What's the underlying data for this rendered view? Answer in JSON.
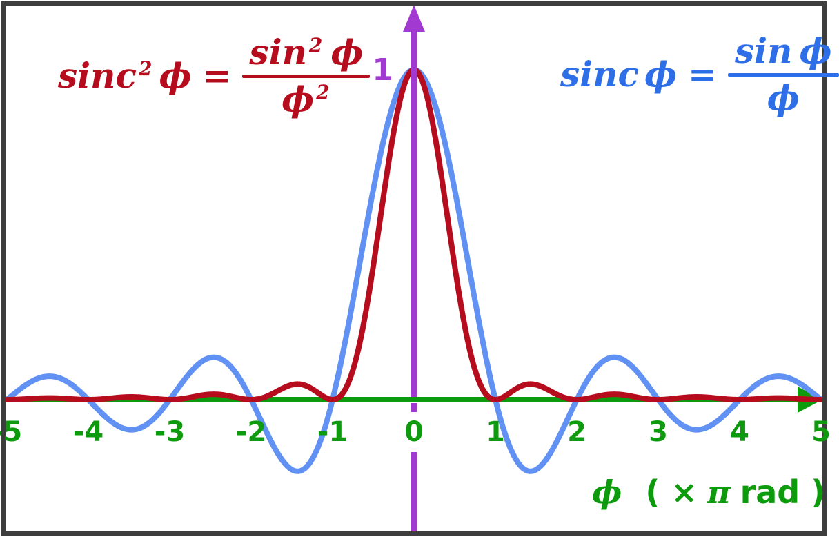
{
  "figure": {
    "background": "#ffffff",
    "border_color": "#3e3e3e"
  },
  "chart_data": {
    "type": "line",
    "title": "",
    "xlabel": "ϕ ( × π rad )",
    "ylabel": "",
    "x_range": [
      -5,
      5
    ],
    "y_range_visible": [
      -0.4,
      1.19
    ],
    "x_ticks": [
      -5,
      -4,
      -3,
      -2,
      -1,
      0,
      1,
      2,
      3,
      4,
      5
    ],
    "grid": false,
    "legend_position": "as-annotations",
    "peak_annotation": {
      "text": "1",
      "x": 0,
      "y": 1
    },
    "axis": {
      "x_color": "#0d9b0d",
      "y_color": "#a23ad2",
      "x_unit": "π rad"
    },
    "series": [
      {
        "name": "sinc ϕ = sin ϕ / ϕ",
        "fn": "sinc",
        "color": "#6191f3",
        "stroke_width": 8,
        "sample_x": [
          -5,
          -4.5,
          -4,
          -3.5,
          -3,
          -2.5,
          -2,
          -1.5,
          -1,
          -0.5,
          0,
          0.5,
          1,
          1.5,
          2,
          2.5,
          3,
          3.5,
          4,
          4.5,
          5
        ],
        "sample_y": [
          0,
          0.0707,
          0,
          -0.0909,
          0,
          0.1273,
          0,
          -0.2122,
          0,
          0.6366,
          1,
          0.6366,
          0,
          -0.2122,
          0,
          0.1273,
          0,
          -0.0909,
          0,
          0.0707,
          0
        ]
      },
      {
        "name": "sinc²ϕ = sin²ϕ / ϕ²",
        "fn": "sinc_squared",
        "color": "#b50d1d",
        "stroke_width": 8,
        "sample_x": [
          -5,
          -4.5,
          -4,
          -3.5,
          -3,
          -2.5,
          -2,
          -1.5,
          -1,
          -0.5,
          0,
          0.5,
          1,
          1.5,
          2,
          2.5,
          3,
          3.5,
          4,
          4.5,
          5
        ],
        "sample_y": [
          0,
          0.005,
          0,
          0.0083,
          0,
          0.0162,
          0,
          0.045,
          0,
          0.4053,
          1,
          0.4053,
          0,
          0.045,
          0,
          0.0162,
          0,
          0.0083,
          0,
          0.005,
          0
        ]
      }
    ]
  },
  "formulas": {
    "sinc_squared": {
      "text": "sinc²ϕ = sin²ϕ / ϕ²",
      "color": "#b50d1d",
      "base": "sinc",
      "sup": "2",
      "var": "ϕ",
      "eq": "=",
      "num_base": "sin",
      "num_sup": "2",
      "num_var": "ϕ",
      "den_base": "ϕ",
      "den_sup": "2"
    },
    "sinc": {
      "text": "sinc ϕ = sin ϕ / ϕ",
      "color": "#2e6fe8",
      "base": "sinc",
      "var": "ϕ",
      "eq": "=",
      "num_base": "sin",
      "num_var": "ϕ",
      "den": "ϕ"
    }
  },
  "labels": {
    "peak": "1",
    "x_axis_var": "ϕ",
    "x_axis_unit_open": "( ×",
    "x_axis_unit_pi": "π",
    "x_axis_unit_close": "rad )"
  }
}
